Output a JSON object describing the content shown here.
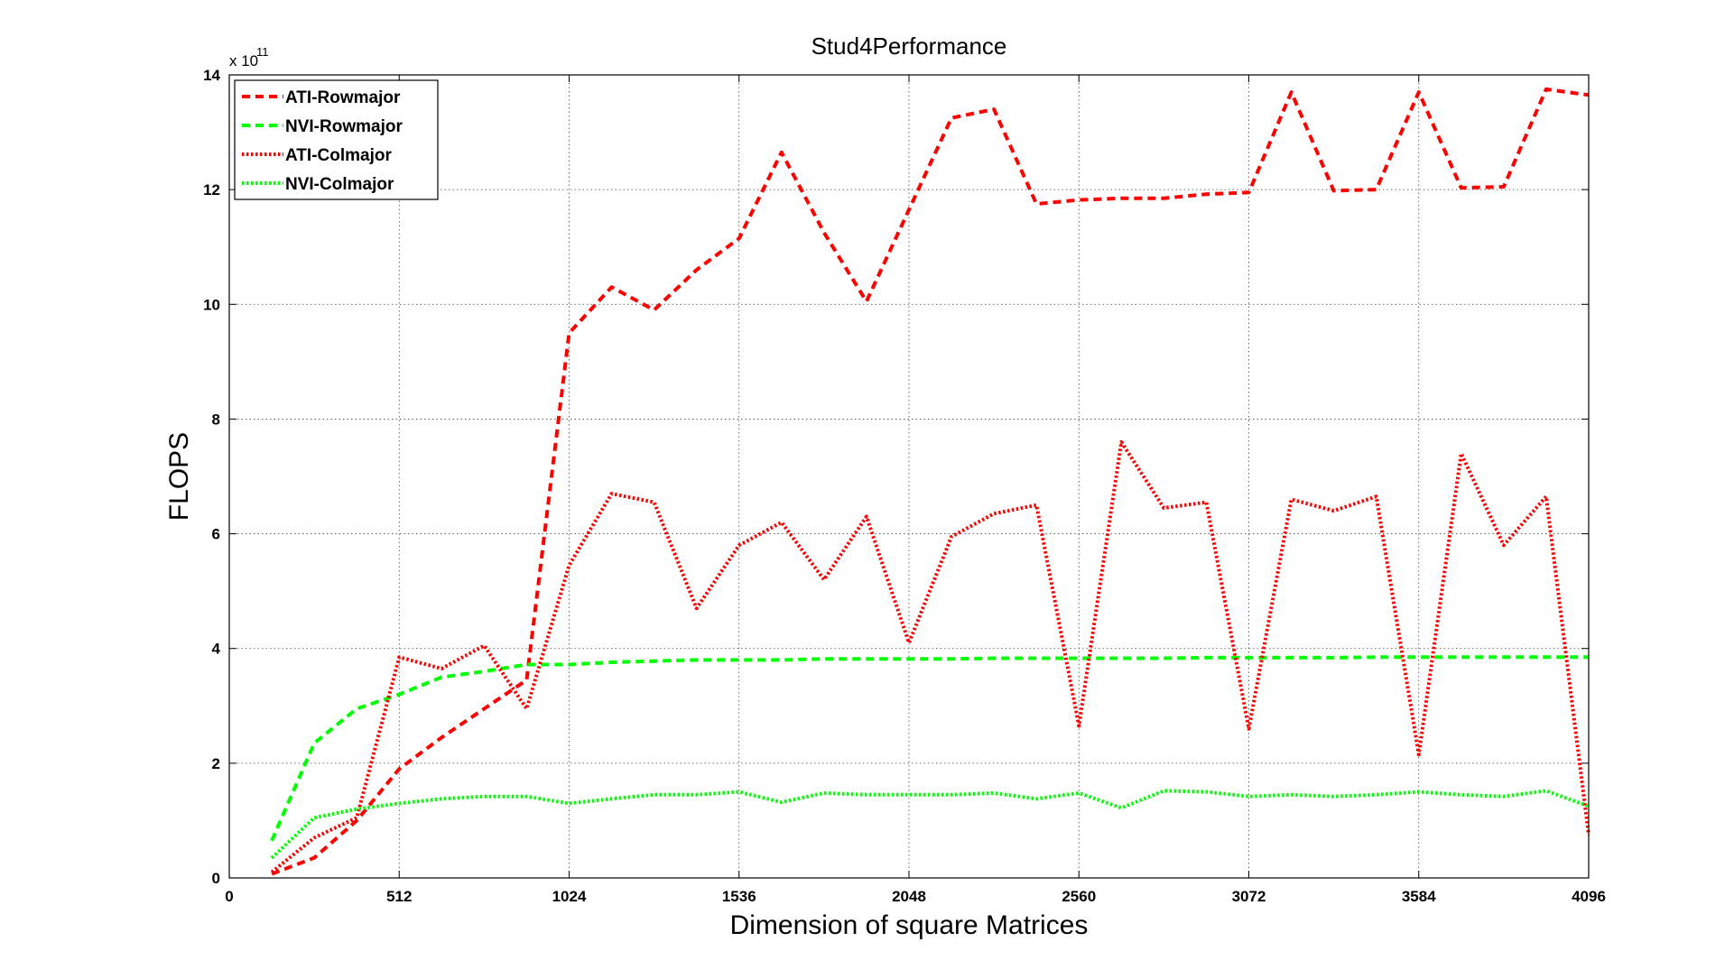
{
  "chart_data": {
    "type": "line",
    "title": "Stud4Performance",
    "xlabel": "Dimension of square Matrices",
    "ylabel": "FLOPS",
    "y_exponent_base": "x 10",
    "y_exponent_power": "11",
    "xlim": [
      0,
      4096
    ],
    "ylim": [
      0,
      14
    ],
    "x_ticks": [
      0,
      512,
      1024,
      1536,
      2048,
      2560,
      3072,
      3584,
      4096
    ],
    "y_ticks": [
      0,
      2,
      4,
      6,
      8,
      10,
      12,
      14
    ],
    "grid": true,
    "legend_position": "top-left",
    "x": [
      128,
      256,
      384,
      512,
      640,
      768,
      896,
      1024,
      1152,
      1280,
      1408,
      1536,
      1664,
      1792,
      1920,
      2048,
      2176,
      2304,
      2432,
      2560,
      2688,
      2816,
      2944,
      3072,
      3200,
      3328,
      3456,
      3584,
      3712,
      3840,
      3968,
      4096
    ],
    "series": [
      {
        "name": "ATI-Rowmajor",
        "color": "#ff0000",
        "style": "dashed",
        "values": [
          0.07,
          0.35,
          1.0,
          1.9,
          2.45,
          2.95,
          3.45,
          9.5,
          10.3,
          9.9,
          10.6,
          11.15,
          12.65,
          11.25,
          10.05,
          11.65,
          13.25,
          13.4,
          11.75,
          11.82,
          11.85,
          11.85,
          11.92,
          11.95,
          13.7,
          11.98,
          12.0,
          13.7,
          12.03,
          12.05,
          13.75,
          13.65
        ]
      },
      {
        "name": "NVI-Rowmajor",
        "color": "#00ff00",
        "style": "dashed",
        "values": [
          0.65,
          2.35,
          2.95,
          3.2,
          3.5,
          3.6,
          3.72,
          3.72,
          3.76,
          3.78,
          3.8,
          3.8,
          3.8,
          3.82,
          3.82,
          3.82,
          3.82,
          3.83,
          3.83,
          3.83,
          3.83,
          3.83,
          3.84,
          3.84,
          3.84,
          3.84,
          3.85,
          3.85,
          3.85,
          3.85,
          3.85,
          3.85
        ]
      },
      {
        "name": "ATI-Colmajor",
        "color": "#ff0000",
        "style": "dotted",
        "values": [
          0.1,
          0.7,
          1.05,
          3.85,
          3.65,
          4.05,
          2.95,
          5.45,
          6.7,
          6.55,
          4.7,
          5.8,
          6.2,
          5.2,
          6.3,
          4.1,
          5.95,
          6.35,
          6.5,
          2.65,
          7.6,
          6.45,
          6.55,
          2.6,
          6.6,
          6.4,
          6.65,
          2.15,
          7.4,
          5.8,
          6.65,
          0.75
        ]
      },
      {
        "name": "NVI-Colmajor",
        "color": "#00ff00",
        "style": "dotted",
        "values": [
          0.35,
          1.05,
          1.2,
          1.3,
          1.38,
          1.42,
          1.42,
          1.3,
          1.38,
          1.45,
          1.45,
          1.5,
          1.32,
          1.48,
          1.45,
          1.45,
          1.45,
          1.48,
          1.38,
          1.48,
          1.22,
          1.52,
          1.5,
          1.42,
          1.45,
          1.42,
          1.45,
          1.5,
          1.45,
          1.42,
          1.52,
          1.25
        ]
      }
    ]
  }
}
